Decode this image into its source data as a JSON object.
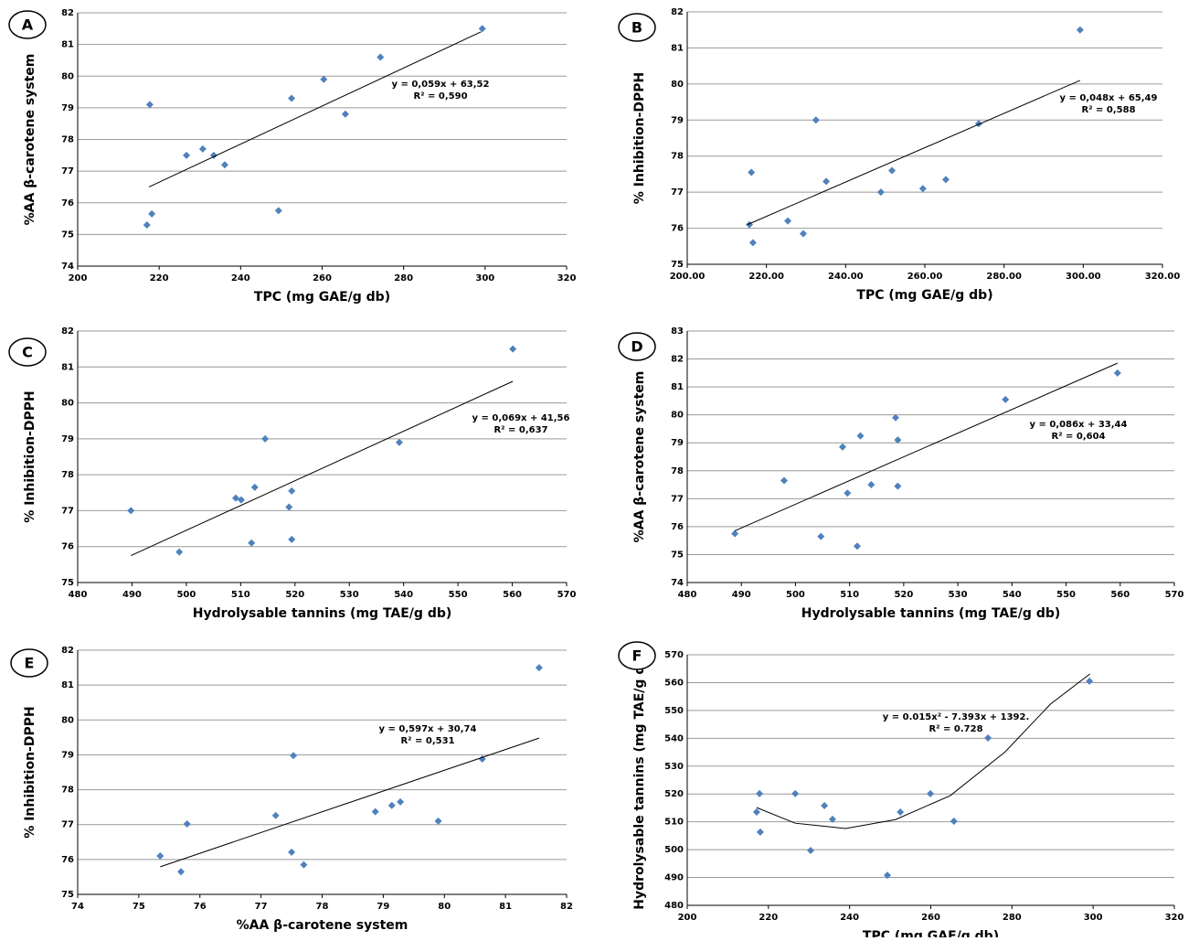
{
  "chart_data": [
    {
      "type": "scatter",
      "panel_label": "A",
      "xlabel": "TPC (mg GAE/g db)",
      "ylabel": "%AA β-carotene system",
      "x": [
        299.3,
        274.3,
        260.4,
        252.5,
        265.7,
        217.7,
        230.7,
        226.7,
        233.4,
        236.1,
        249.3,
        218.2,
        217
      ],
      "y": [
        81.5,
        80.6,
        79.9,
        79.3,
        78.8,
        79.1,
        77.7,
        77.5,
        77.5,
        77.2,
        75.75,
        75.65,
        75.3
      ],
      "trend": {
        "x": [
          217.5,
          299
        ],
        "y": [
          76.5,
          81.4
        ]
      },
      "annotation": [
        "y = 0,059x + 63,52",
        "R² = 0,590"
      ],
      "xlim": [
        200,
        320
      ],
      "xticks": [
        200,
        220,
        240,
        260,
        280,
        300,
        320
      ],
      "ylim": [
        74,
        82
      ],
      "yticks": [
        74,
        75,
        76,
        77,
        78,
        79,
        80,
        81,
        82
      ],
      "grid": true,
      "color": "#4f81bd"
    },
    {
      "type": "scatter",
      "panel_label": "B",
      "xlabel": "TPC (mg GAE/g db)",
      "ylabel": "% Inhibition-DPPH",
      "x": [
        299.2,
        273.6,
        232.5,
        216.2,
        251.7,
        265.3,
        235.1,
        248.9,
        259.5,
        225.4,
        215.7,
        229.3,
        216.6
      ],
      "y": [
        81.5,
        78.9,
        79.0,
        77.55,
        77.6,
        77.35,
        77.3,
        77.0,
        77.1,
        76.2,
        76.1,
        75.85,
        75.6
      ],
      "trend": {
        "x": [
          215.2,
          299.2
        ],
        "y": [
          76.1,
          80.1
        ]
      },
      "annotation": [
        "y = 0,048x + 65,49",
        "R² = 0,588"
      ],
      "xlim": [
        200,
        320
      ],
      "xticks": [
        {
          "value": 200,
          "label": "200.00"
        },
        {
          "value": 220,
          "label": "220.00"
        },
        {
          "value": 240,
          "label": "240.00"
        },
        {
          "value": 260,
          "label": "260.00"
        },
        {
          "value": 280,
          "label": "280.00"
        },
        {
          "value": 300,
          "label": "300.00"
        },
        {
          "value": 320,
          "label": "320.00"
        }
      ],
      "ylim": [
        75,
        82
      ],
      "yticks": [
        75,
        76,
        77,
        78,
        79,
        80,
        81,
        82
      ],
      "grid": true,
      "color": "#4f81bd"
    },
    {
      "type": "scatter",
      "panel_label": "C",
      "xlabel": "Hydrolysable tannins (mg TAE/g db)",
      "ylabel": "% Inhibition-DPPH",
      "x": [
        560.1,
        539.2,
        514.5,
        489.8,
        498.7,
        509.1,
        510.1,
        512.6,
        519.4,
        518.9,
        519.4,
        512
      ],
      "y": [
        81.5,
        78.9,
        79.0,
        77.0,
        75.85,
        77.35,
        77.3,
        77.65,
        77.55,
        77.1,
        76.2,
        76.1
      ],
      "trend": {
        "x": [
          489.8,
          560.1
        ],
        "y": [
          75.75,
          80.6
        ]
      },
      "annotation": [
        "y = 0,069x + 41,56",
        "R² = 0,637"
      ],
      "xlim": [
        480,
        570
      ],
      "xticks": [
        480,
        490,
        500,
        510,
        520,
        530,
        540,
        550,
        560,
        570
      ],
      "ylim": [
        75,
        82
      ],
      "yticks": [
        75,
        76,
        77,
        78,
        79,
        80,
        81,
        82
      ],
      "grid": true,
      "color": "#4f81bd"
    },
    {
      "type": "scatter",
      "panel_label": "D",
      "xlabel": "Hydrolysable tannins (mg TAE/g db)",
      "ylabel": "%AA β-carotene system",
      "x": [
        559.5,
        538.8,
        518.5,
        518.9,
        512,
        508.7,
        497.9,
        514,
        518.9,
        509.6,
        488.8,
        504.7,
        511.4
      ],
      "y": [
        81.5,
        80.55,
        79.9,
        79.1,
        79.25,
        78.85,
        77.65,
        77.5,
        77.45,
        77.2,
        75.75,
        75.65,
        75.3
      ],
      "trend": {
        "x": [
          488.8,
          559.5
        ],
        "y": [
          75.85,
          81.85
        ]
      },
      "annotation": [
        "y = 0,086x + 33,44",
        "R² = 0,604"
      ],
      "xlim": [
        480,
        570
      ],
      "xticks": [
        480,
        490,
        500,
        510,
        520,
        530,
        540,
        550,
        560,
        570
      ],
      "ylim": [
        74,
        83
      ],
      "yticks": [
        74,
        75,
        76,
        77,
        78,
        79,
        80,
        81,
        82,
        83
      ],
      "grid": true,
      "color": "#4f81bd"
    },
    {
      "type": "scatter",
      "panel_label": "E",
      "xlabel": "%AA β-carotene system",
      "ylabel": "% Inhibition-DPPH",
      "x": [
        81.55,
        80.62,
        77.53,
        79.9,
        79.28,
        79.14,
        78.87,
        77.24,
        75.79,
        77.5,
        77.7,
        75.35,
        75.69
      ],
      "y": [
        81.5,
        78.88,
        78.98,
        77.1,
        77.65,
        77.55,
        77.37,
        77.26,
        77.02,
        76.21,
        75.85,
        76.1,
        75.65
      ],
      "trend": {
        "x": [
          75.35,
          81.55
        ],
        "y": [
          75.79,
          79.48
        ]
      },
      "annotation": [
        "y = 0,597x + 30,74",
        "R² = 0,531"
      ],
      "xlim": [
        74,
        82
      ],
      "xticks": [
        74,
        75,
        76,
        77,
        78,
        79,
        80,
        81,
        82
      ],
      "ylim": [
        75,
        82
      ],
      "yticks": [
        75,
        76,
        77,
        78,
        79,
        80,
        81,
        82
      ],
      "grid": true,
      "color": "#4f81bd"
    },
    {
      "type": "scatter",
      "panel_label": "F",
      "xlabel": "TPC (mg GAE/g db)",
      "ylabel": "Hydrolysable tannins (mg TAE/g db)",
      "x": [
        299.1,
        274.1,
        259.9,
        226.6,
        217.8,
        217.1,
        233.8,
        252.5,
        235.8,
        265.7,
        218,
        230.4,
        249.3
      ],
      "y": [
        560.5,
        540.1,
        520.1,
        520.1,
        520.1,
        513.5,
        515.8,
        513.5,
        510.9,
        510.2,
        506.3,
        499.7,
        490.8
      ],
      "trend": {
        "x": [
          217.1,
          226.6,
          239,
          251.3,
          264.8,
          278.3,
          289.5,
          299.2
        ],
        "y": [
          515.1,
          509.5,
          507.6,
          510.8,
          519.4,
          535.1,
          552.3,
          563.1
        ]
      },
      "annotation": [
        "y = 0.015x² - 7.393x + 1392.",
        "R² = 0.728"
      ],
      "xlim": [
        200,
        320
      ],
      "xticks": [
        200,
        220,
        240,
        260,
        280,
        300,
        320
      ],
      "ylim": [
        480,
        570
      ],
      "yticks": [
        480,
        490,
        500,
        510,
        520,
        530,
        540,
        550,
        560,
        570
      ],
      "grid": true,
      "color": "#4f81bd"
    }
  ]
}
